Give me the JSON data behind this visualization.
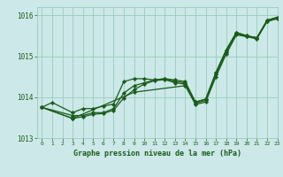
{
  "bg_color": "#cce8e8",
  "grid_color": "#99ccbb",
  "line_color": "#1a5c1a",
  "marker_color": "#1a5c1a",
  "xlabel": "Graphe pression niveau de la mer (hPa)",
  "xlim": [
    -0.5,
    23
  ],
  "ylim": [
    1013.0,
    1016.2
  ],
  "yticks": [
    1013,
    1014,
    1015,
    1016
  ],
  "xticks": [
    0,
    1,
    2,
    3,
    4,
    5,
    6,
    7,
    8,
    9,
    10,
    11,
    12,
    13,
    14,
    15,
    16,
    17,
    18,
    19,
    20,
    21,
    22,
    23
  ],
  "series1": [
    [
      0,
      1013.75
    ],
    [
      1,
      1013.87
    ],
    [
      3,
      1013.62
    ],
    [
      4,
      1013.72
    ],
    [
      5,
      1013.72
    ],
    [
      6,
      1013.78
    ],
    [
      7,
      1013.83
    ],
    [
      8,
      1014.38
    ],
    [
      9,
      1014.45
    ],
    [
      10,
      1014.45
    ],
    [
      11,
      1014.42
    ],
    [
      12,
      1014.45
    ],
    [
      13,
      1014.42
    ],
    [
      14,
      1014.38
    ],
    [
      15,
      1013.88
    ],
    [
      16,
      1013.95
    ],
    [
      17,
      1014.6
    ],
    [
      18,
      1015.15
    ],
    [
      19,
      1015.58
    ],
    [
      20,
      1015.5
    ],
    [
      21,
      1015.45
    ],
    [
      22,
      1015.88
    ],
    [
      23,
      1015.95
    ]
  ],
  "series2": [
    [
      0,
      1013.75
    ],
    [
      3,
      1013.55
    ],
    [
      4,
      1013.55
    ],
    [
      5,
      1013.62
    ],
    [
      6,
      1013.62
    ],
    [
      7,
      1013.72
    ],
    [
      8,
      1014.1
    ],
    [
      9,
      1014.28
    ],
    [
      10,
      1014.35
    ],
    [
      11,
      1014.42
    ],
    [
      12,
      1014.45
    ],
    [
      13,
      1014.38
    ],
    [
      14,
      1014.35
    ],
    [
      15,
      1013.88
    ],
    [
      16,
      1013.95
    ],
    [
      17,
      1014.6
    ],
    [
      18,
      1015.15
    ],
    [
      19,
      1015.58
    ],
    [
      20,
      1015.5
    ],
    [
      21,
      1015.45
    ],
    [
      22,
      1015.88
    ],
    [
      23,
      1015.95
    ]
  ],
  "series3": [
    [
      0,
      1013.75
    ],
    [
      3,
      1013.48
    ],
    [
      4,
      1013.52
    ],
    [
      5,
      1013.58
    ],
    [
      6,
      1013.6
    ],
    [
      7,
      1013.68
    ],
    [
      8,
      1013.98
    ],
    [
      9,
      1014.18
    ],
    [
      10,
      1014.32
    ],
    [
      11,
      1014.4
    ],
    [
      12,
      1014.43
    ],
    [
      13,
      1014.35
    ],
    [
      14,
      1014.32
    ],
    [
      15,
      1013.85
    ],
    [
      16,
      1013.92
    ],
    [
      17,
      1014.55
    ],
    [
      18,
      1015.1
    ],
    [
      19,
      1015.55
    ],
    [
      20,
      1015.48
    ],
    [
      21,
      1015.42
    ],
    [
      22,
      1015.85
    ],
    [
      23,
      1015.92
    ]
  ],
  "series4": [
    [
      0,
      1013.75
    ],
    [
      3,
      1013.48
    ],
    [
      9,
      1014.12
    ],
    [
      14,
      1014.28
    ],
    [
      15,
      1013.82
    ],
    [
      16,
      1013.88
    ],
    [
      17,
      1014.5
    ],
    [
      18,
      1015.05
    ],
    [
      19,
      1015.52
    ],
    [
      20,
      1015.48
    ],
    [
      21,
      1015.45
    ],
    [
      22,
      1015.85
    ],
    [
      23,
      1015.92
    ]
  ]
}
